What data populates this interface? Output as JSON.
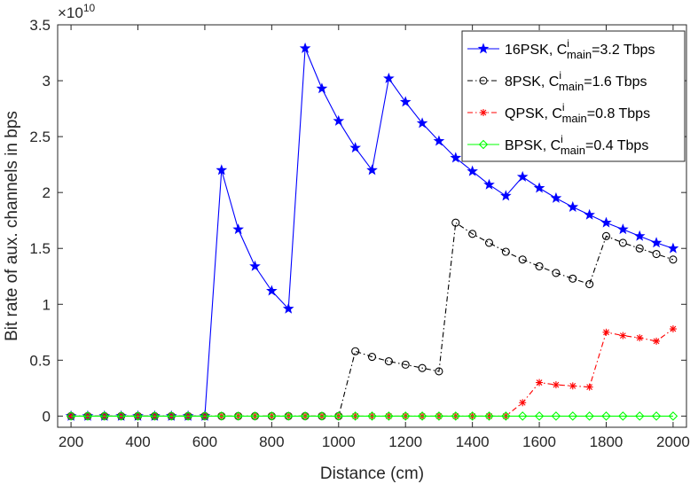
{
  "chart_data": {
    "type": "line",
    "xlabel": "Distance (cm)",
    "ylabel": "Bit rate of aux. channels in bps",
    "exponent_label": {
      "base": "×10",
      "power": "10"
    },
    "xlim": [
      160,
      2040
    ],
    "ylim": [
      0,
      3.5
    ],
    "y_offset_floor": -0.1,
    "xticks": [
      200,
      400,
      600,
      800,
      1000,
      1200,
      1400,
      1600,
      1800,
      2000
    ],
    "yticks": [
      0,
      0.5,
      1,
      1.5,
      2,
      2.5,
      3,
      3.5
    ],
    "ytick_labels": [
      "0",
      "0.5",
      "1",
      "1.5",
      "2",
      "2.5",
      "3",
      "3.5"
    ],
    "grid": false,
    "legend_position": "top-right",
    "x": [
      200,
      250,
      300,
      350,
      400,
      450,
      500,
      550,
      600,
      650,
      700,
      750,
      800,
      850,
      900,
      950,
      1000,
      1050,
      1100,
      1150,
      1200,
      1250,
      1300,
      1350,
      1400,
      1450,
      1500,
      1550,
      1600,
      1650,
      1700,
      1750,
      1800,
      1850,
      1900,
      1950,
      2000
    ],
    "series": [
      {
        "name": "16PSK",
        "legend": {
          "prefix": "16PSK, C",
          "sup": "i",
          "sub": "main",
          "suffix": "=3.2 Tbps"
        },
        "color": "#0000ff",
        "marker": "star",
        "dash": "",
        "values": [
          0,
          0,
          0,
          0,
          0,
          0,
          0,
          0,
          0,
          2.2,
          1.67,
          1.34,
          1.12,
          0.96,
          3.29,
          2.93,
          2.64,
          2.4,
          2.2,
          3.02,
          2.81,
          2.62,
          2.46,
          2.31,
          2.19,
          2.07,
          1.97,
          2.14,
          2.04,
          1.95,
          1.87,
          1.8,
          1.73,
          1.67,
          1.61,
          1.55,
          1.5
        ]
      },
      {
        "name": "8PSK",
        "legend": {
          "prefix": "8PSK, C",
          "sup": "i",
          "sub": "main",
          "suffix": "=1.6 Tbps"
        },
        "color": "#000000",
        "marker": "circle",
        "dash": "6,3,1.5,3",
        "values": [
          0,
          0,
          0,
          0,
          0,
          0,
          0,
          0,
          0,
          0,
          0,
          0,
          0,
          0,
          0,
          0,
          0,
          0.58,
          0.53,
          0.49,
          0.46,
          0.43,
          0.4,
          1.73,
          1.63,
          1.55,
          1.47,
          1.4,
          1.34,
          1.28,
          1.23,
          1.18,
          1.61,
          1.55,
          1.5,
          1.45,
          1.4
        ]
      },
      {
        "name": "QPSK",
        "legend": {
          "prefix": "QPSK, C",
          "sup": "i",
          "sub": "main",
          "suffix": "=0.8 Tbps"
        },
        "color": "#ff0000",
        "marker": "asterisk",
        "dash": "6,3,1.5,3",
        "values": [
          0,
          0,
          0,
          0,
          0,
          0,
          0,
          0,
          0,
          0,
          0,
          0,
          0,
          0,
          0,
          0,
          0,
          0,
          0,
          0,
          0,
          0,
          0,
          0,
          0,
          0,
          0,
          0.12,
          0.3,
          0.28,
          0.27,
          0.26,
          0.75,
          0.72,
          0.7,
          0.67,
          0.78
        ]
      },
      {
        "name": "BPSK",
        "legend": {
          "prefix": "BPSK, C",
          "sup": "i",
          "sub": "main",
          "suffix": "=0.4 Tbps"
        },
        "color": "#00ff00",
        "marker": "diamond",
        "dash": "",
        "values": [
          0,
          0,
          0,
          0,
          0,
          0,
          0,
          0,
          0,
          0,
          0,
          0,
          0,
          0,
          0,
          0,
          0,
          0,
          0,
          0,
          0,
          0,
          0,
          0,
          0,
          0,
          0,
          0,
          0,
          0,
          0,
          0,
          0,
          0,
          0,
          0,
          0
        ]
      }
    ]
  }
}
